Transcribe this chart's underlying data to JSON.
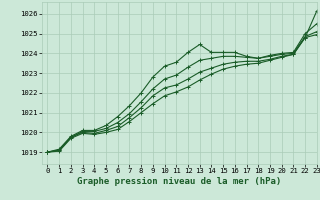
{
  "title": "Graphe pression niveau de la mer (hPa)",
  "background_color": "#cce8d8",
  "grid_color": "#aaccb8",
  "line_color": "#1a5c28",
  "xlim": [
    -0.5,
    23
  ],
  "ylim": [
    1018.4,
    1026.6
  ],
  "yticks": [
    1019,
    1020,
    1021,
    1022,
    1023,
    1024,
    1025,
    1026
  ],
  "xticks": [
    0,
    1,
    2,
    3,
    4,
    5,
    6,
    7,
    8,
    9,
    10,
    11,
    12,
    13,
    14,
    15,
    16,
    17,
    18,
    19,
    20,
    21,
    22,
    23
  ],
  "hours": [
    0,
    1,
    2,
    3,
    4,
    5,
    6,
    7,
    8,
    9,
    10,
    11,
    12,
    13,
    14,
    15,
    16,
    17,
    18,
    19,
    20,
    21,
    22,
    23
  ],
  "line1": [
    1019.0,
    1019.15,
    1019.8,
    1020.1,
    1020.1,
    1020.35,
    1020.8,
    1021.35,
    1022.0,
    1022.8,
    1023.35,
    1023.55,
    1024.05,
    1024.45,
    1024.05,
    1024.05,
    1024.05,
    1023.85,
    1023.75,
    1023.9,
    1024.0,
    1024.05,
    1025.0,
    1025.5
  ],
  "line2": [
    1019.0,
    1019.1,
    1019.75,
    1020.05,
    1020.05,
    1020.2,
    1020.5,
    1020.95,
    1021.55,
    1022.2,
    1022.7,
    1022.9,
    1023.3,
    1023.65,
    1023.75,
    1023.85,
    1023.85,
    1023.8,
    1023.75,
    1023.85,
    1023.95,
    1024.0,
    1024.85,
    1025.1
  ],
  "line3": [
    1019.0,
    1019.1,
    1019.75,
    1020.0,
    1019.95,
    1020.1,
    1020.3,
    1020.75,
    1021.25,
    1021.85,
    1022.25,
    1022.4,
    1022.7,
    1023.05,
    1023.25,
    1023.45,
    1023.55,
    1023.6,
    1023.6,
    1023.7,
    1023.85,
    1023.95,
    1024.8,
    1024.95
  ],
  "line4": [
    1019.0,
    1019.05,
    1019.7,
    1019.95,
    1019.9,
    1020.0,
    1020.15,
    1020.55,
    1021.0,
    1021.45,
    1021.85,
    1022.05,
    1022.3,
    1022.65,
    1022.95,
    1023.2,
    1023.35,
    1023.45,
    1023.5,
    1023.65,
    1023.8,
    1023.95,
    1024.8,
    1026.15
  ],
  "marker": "+",
  "markersize": 2.5,
  "linewidth": 0.8,
  "title_fontsize": 6.5,
  "tick_fontsize": 5.2
}
